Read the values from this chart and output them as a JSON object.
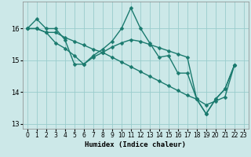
{
  "xlabel": "Humidex (Indice chaleur)",
  "background_color": "#cce8e8",
  "grid_color": "#99cccc",
  "line_color": "#1a7a6e",
  "xlim": [
    -0.5,
    23.5
  ],
  "ylim": [
    12.85,
    16.85
  ],
  "yticks": [
    13,
    14,
    15,
    16
  ],
  "xticks": [
    0,
    1,
    2,
    3,
    4,
    5,
    6,
    7,
    8,
    9,
    10,
    11,
    12,
    13,
    14,
    15,
    16,
    17,
    18,
    19,
    20,
    21,
    22,
    23
  ],
  "lines": [
    {
      "x": [
        0,
        1,
        2,
        3,
        4,
        5,
        6,
        7,
        8,
        9,
        10,
        11,
        12,
        13,
        14,
        15,
        16,
        17,
        18,
        19,
        20,
        21,
        22
      ],
      "y": [
        16.0,
        16.3,
        16.0,
        16.0,
        15.65,
        14.88,
        14.88,
        15.15,
        15.35,
        15.6,
        16.0,
        16.65,
        16.02,
        15.55,
        15.1,
        15.15,
        14.6,
        14.6,
        13.78,
        13.32,
        13.78,
        14.1,
        14.85
      ]
    },
    {
      "x": [
        0,
        1,
        2,
        3,
        4,
        5,
        6,
        7,
        8,
        9,
        10,
        11,
        12,
        13,
        14,
        15,
        16,
        17,
        18,
        19,
        20,
        21,
        22
      ],
      "y": [
        16.0,
        16.0,
        15.88,
        15.55,
        15.38,
        15.15,
        14.88,
        15.1,
        15.25,
        15.42,
        15.55,
        15.65,
        15.6,
        15.5,
        15.4,
        15.3,
        15.2,
        15.1,
        13.78,
        13.32,
        13.78,
        14.1,
        14.85
      ]
    },
    {
      "x": [
        0,
        1,
        2,
        3,
        4,
        5,
        6,
        7,
        8,
        9,
        10,
        11,
        12,
        13,
        14,
        15,
        16,
        17,
        18,
        19,
        20,
        21,
        22
      ],
      "y": [
        16.0,
        16.0,
        15.88,
        15.88,
        15.72,
        15.6,
        15.48,
        15.35,
        15.25,
        15.1,
        14.95,
        14.8,
        14.65,
        14.5,
        14.35,
        14.2,
        14.05,
        13.9,
        13.78,
        13.6,
        13.72,
        13.85,
        14.85
      ]
    }
  ],
  "marker": "D",
  "markersize": 2.5,
  "linewidth": 1.0,
  "tick_fontsize": 5.5,
  "xlabel_fontsize": 6.5
}
